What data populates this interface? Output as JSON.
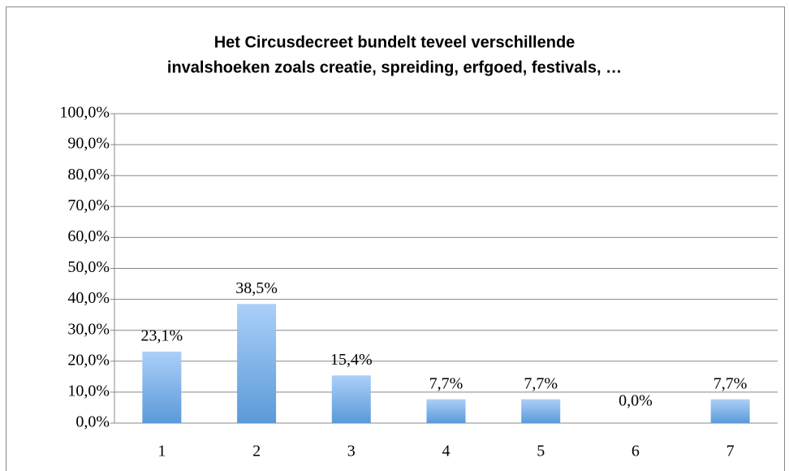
{
  "chart_data": {
    "type": "bar",
    "title": [
      "Het Circusdecreet bundelt teveel verschillende",
      "invalshoeken zoals creatie, spreiding, erfgoed, festivals, …"
    ],
    "categories": [
      "1",
      "2",
      "3",
      "4",
      "5",
      "6",
      "7"
    ],
    "values": [
      23.1,
      38.5,
      15.4,
      7.7,
      7.7,
      0.0,
      7.7
    ],
    "value_labels": [
      "23,1%",
      "38,5%",
      "15,4%",
      "7,7%",
      "7,7%",
      "0,0%",
      "7,7%"
    ],
    "color": [
      "#abcff8",
      "#5a9ad8"
    ],
    "ylim": [
      0,
      100
    ],
    "yticks": [
      {
        "value": 0,
        "label": "0,0%"
      },
      {
        "value": 10,
        "label": "10,0%"
      },
      {
        "value": 20,
        "label": "20,0%"
      },
      {
        "value": 30,
        "label": "30,0%"
      },
      {
        "value": 40,
        "label": "40,0%"
      },
      {
        "value": 50,
        "label": "50,0%"
      },
      {
        "value": 60,
        "label": "60,0%"
      },
      {
        "value": 70,
        "label": "70,0%"
      },
      {
        "value": 80,
        "label": "80,0%"
      },
      {
        "value": 90,
        "label": "90,0%"
      },
      {
        "value": 100,
        "label": "100,0%"
      }
    ],
    "grid": true
  }
}
